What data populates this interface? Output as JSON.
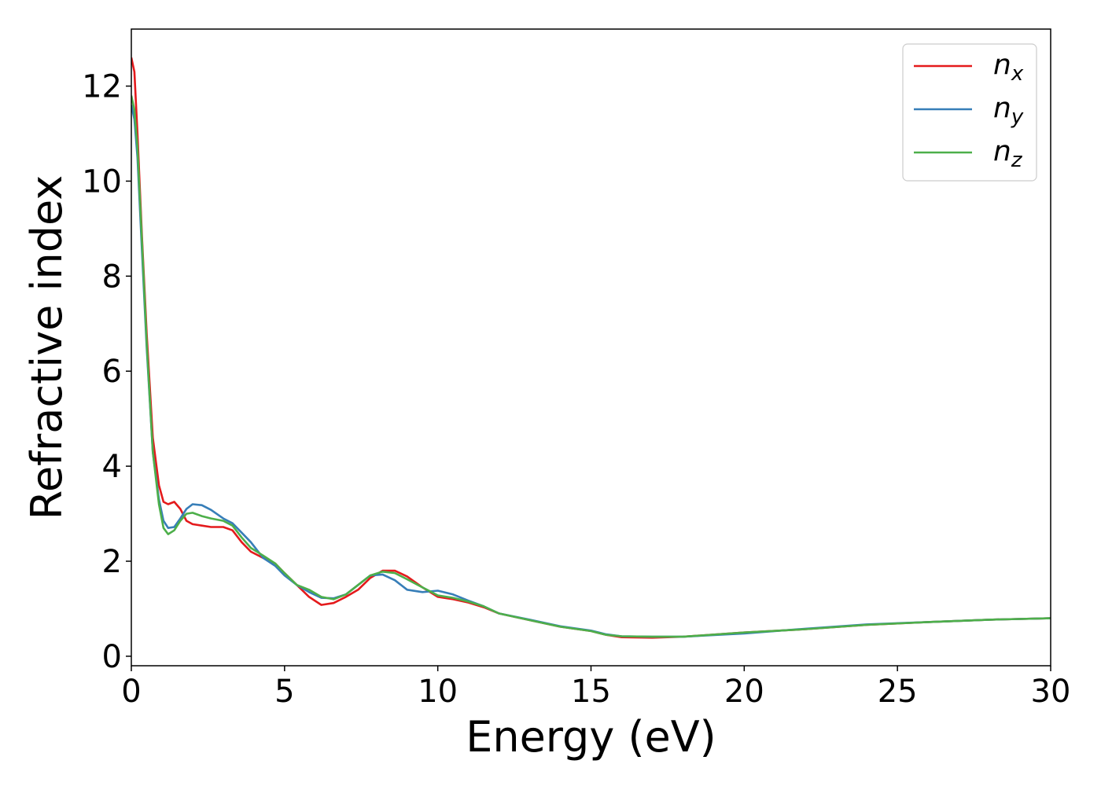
{
  "chart_data": {
    "type": "line",
    "title": "",
    "xlabel": "Energy (eV)",
    "ylabel": "Refractive index",
    "xlim": [
      0,
      30
    ],
    "ylim": [
      -0.2,
      13.2
    ],
    "xticks": [
      0,
      5,
      10,
      15,
      20,
      25,
      30
    ],
    "yticks": [
      0,
      2,
      4,
      6,
      8,
      10,
      12
    ],
    "grid": false,
    "legend_position": "top-right",
    "series": [
      {
        "name": "n",
        "subscript": "x",
        "color": "#e41a1c",
        "points": [
          [
            0,
            12.6
          ],
          [
            0.1,
            12.3
          ],
          [
            0.2,
            11.0
          ],
          [
            0.35,
            8.8
          ],
          [
            0.5,
            6.8
          ],
          [
            0.7,
            4.6
          ],
          [
            0.9,
            3.6
          ],
          [
            1.05,
            3.25
          ],
          [
            1.2,
            3.2
          ],
          [
            1.4,
            3.25
          ],
          [
            1.6,
            3.1
          ],
          [
            1.8,
            2.85
          ],
          [
            2.0,
            2.78
          ],
          [
            2.3,
            2.75
          ],
          [
            2.6,
            2.72
          ],
          [
            3.0,
            2.72
          ],
          [
            3.3,
            2.65
          ],
          [
            3.6,
            2.4
          ],
          [
            3.9,
            2.2
          ],
          [
            4.3,
            2.07
          ],
          [
            4.7,
            1.95
          ],
          [
            5.0,
            1.75
          ],
          [
            5.4,
            1.5
          ],
          [
            5.8,
            1.25
          ],
          [
            6.2,
            1.08
          ],
          [
            6.6,
            1.12
          ],
          [
            7.0,
            1.25
          ],
          [
            7.4,
            1.4
          ],
          [
            7.8,
            1.65
          ],
          [
            8.2,
            1.8
          ],
          [
            8.6,
            1.8
          ],
          [
            9.0,
            1.68
          ],
          [
            9.5,
            1.45
          ],
          [
            10.0,
            1.25
          ],
          [
            10.5,
            1.2
          ],
          [
            11.0,
            1.13
          ],
          [
            11.5,
            1.03
          ],
          [
            12.0,
            0.9
          ],
          [
            13.0,
            0.76
          ],
          [
            14.0,
            0.62
          ],
          [
            15.0,
            0.53
          ],
          [
            15.5,
            0.45
          ],
          [
            16.0,
            0.4
          ],
          [
            17.0,
            0.39
          ],
          [
            18.0,
            0.41
          ],
          [
            20.0,
            0.5
          ],
          [
            22.0,
            0.57
          ],
          [
            24.0,
            0.66
          ],
          [
            26.0,
            0.72
          ],
          [
            28.0,
            0.77
          ],
          [
            30.0,
            0.8
          ]
        ]
      },
      {
        "name": "n",
        "subscript": "y",
        "color": "#377eb8",
        "points": [
          [
            0,
            11.6
          ],
          [
            0.1,
            11.3
          ],
          [
            0.2,
            10.5
          ],
          [
            0.35,
            8.5
          ],
          [
            0.5,
            6.5
          ],
          [
            0.7,
            4.3
          ],
          [
            0.9,
            3.3
          ],
          [
            1.05,
            2.85
          ],
          [
            1.2,
            2.7
          ],
          [
            1.4,
            2.72
          ],
          [
            1.6,
            2.9
          ],
          [
            1.8,
            3.1
          ],
          [
            2.0,
            3.2
          ],
          [
            2.3,
            3.18
          ],
          [
            2.6,
            3.08
          ],
          [
            3.0,
            2.9
          ],
          [
            3.3,
            2.8
          ],
          [
            3.6,
            2.6
          ],
          [
            3.9,
            2.4
          ],
          [
            4.3,
            2.07
          ],
          [
            4.7,
            1.9
          ],
          [
            5.0,
            1.7
          ],
          [
            5.4,
            1.5
          ],
          [
            5.8,
            1.35
          ],
          [
            6.2,
            1.23
          ],
          [
            6.6,
            1.22
          ],
          [
            7.0,
            1.3
          ],
          [
            7.4,
            1.5
          ],
          [
            7.8,
            1.7
          ],
          [
            8.2,
            1.72
          ],
          [
            8.6,
            1.6
          ],
          [
            9.0,
            1.4
          ],
          [
            9.5,
            1.35
          ],
          [
            10.0,
            1.38
          ],
          [
            10.5,
            1.3
          ],
          [
            11.0,
            1.17
          ],
          [
            11.5,
            1.05
          ],
          [
            12.0,
            0.9
          ],
          [
            13.0,
            0.77
          ],
          [
            14.0,
            0.63
          ],
          [
            15.0,
            0.54
          ],
          [
            15.5,
            0.46
          ],
          [
            16.0,
            0.42
          ],
          [
            17.0,
            0.41
          ],
          [
            18.0,
            0.41
          ],
          [
            20.0,
            0.48
          ],
          [
            22.0,
            0.58
          ],
          [
            24.0,
            0.67
          ],
          [
            26.0,
            0.72
          ],
          [
            28.0,
            0.77
          ],
          [
            30.0,
            0.8
          ]
        ]
      },
      {
        "name": "n",
        "subscript": "z",
        "color": "#4daf4a",
        "points": [
          [
            0,
            11.8
          ],
          [
            0.1,
            11.5
          ],
          [
            0.2,
            10.7
          ],
          [
            0.35,
            8.7
          ],
          [
            0.5,
            6.6
          ],
          [
            0.7,
            4.3
          ],
          [
            0.9,
            3.2
          ],
          [
            1.05,
            2.7
          ],
          [
            1.2,
            2.57
          ],
          [
            1.4,
            2.65
          ],
          [
            1.6,
            2.85
          ],
          [
            1.8,
            3.0
          ],
          [
            2.0,
            3.02
          ],
          [
            2.3,
            2.95
          ],
          [
            2.6,
            2.9
          ],
          [
            3.0,
            2.85
          ],
          [
            3.3,
            2.75
          ],
          [
            3.6,
            2.5
          ],
          [
            3.9,
            2.28
          ],
          [
            4.3,
            2.12
          ],
          [
            4.7,
            1.95
          ],
          [
            5.0,
            1.75
          ],
          [
            5.4,
            1.5
          ],
          [
            5.8,
            1.4
          ],
          [
            6.2,
            1.25
          ],
          [
            6.6,
            1.2
          ],
          [
            7.0,
            1.3
          ],
          [
            7.4,
            1.5
          ],
          [
            7.8,
            1.7
          ],
          [
            8.2,
            1.78
          ],
          [
            8.6,
            1.75
          ],
          [
            9.0,
            1.62
          ],
          [
            9.5,
            1.45
          ],
          [
            10.0,
            1.28
          ],
          [
            10.5,
            1.23
          ],
          [
            11.0,
            1.15
          ],
          [
            11.5,
            1.05
          ],
          [
            12.0,
            0.9
          ],
          [
            13.0,
            0.76
          ],
          [
            14.0,
            0.62
          ],
          [
            15.0,
            0.53
          ],
          [
            15.5,
            0.45
          ],
          [
            16.0,
            0.42
          ],
          [
            17.0,
            0.41
          ],
          [
            18.0,
            0.41
          ],
          [
            20.0,
            0.5
          ],
          [
            22.0,
            0.57
          ],
          [
            24.0,
            0.66
          ],
          [
            26.0,
            0.72
          ],
          [
            28.0,
            0.77
          ],
          [
            30.0,
            0.8
          ]
        ]
      }
    ]
  }
}
